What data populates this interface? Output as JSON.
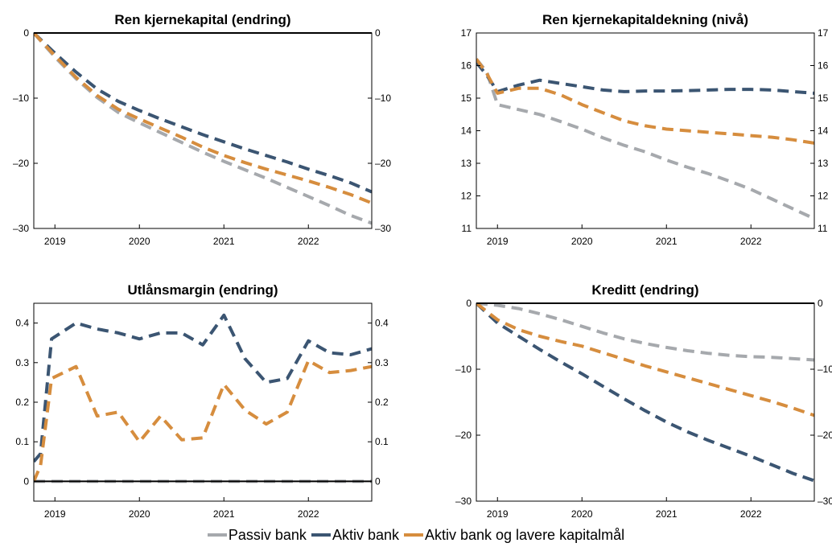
{
  "colors": {
    "Passiv bank": "#a6a9ad",
    "Aktiv bank": "#3b5572",
    "Aktiv bank og lavere kapitalmål": "#d68d3e"
  },
  "legend": {
    "items": [
      {
        "label": "Passiv bank",
        "color": "#a6a9ad"
      },
      {
        "label": "Aktiv bank",
        "color": "#3b5572"
      },
      {
        "label": "Aktiv bank og lavere kapitalmål",
        "color": "#d68d3e"
      }
    ]
  },
  "chart_data": [
    {
      "type": "line",
      "title": "Ren kjernekapital (endring)",
      "xlabel": "",
      "ylabel": "",
      "xlim": [
        2018.75,
        2022.75
      ],
      "ylim": [
        -30,
        0
      ],
      "yticks": [
        0,
        -10,
        -20,
        -30
      ],
      "yticklabels": [
        "0",
        "–10",
        "–20",
        "–30"
      ],
      "xticks": [
        2019,
        2020,
        2021,
        2022
      ],
      "xticklabels": [
        "2019",
        "2020",
        "2021",
        "2022"
      ],
      "zero_line": 0,
      "series": [
        {
          "name": "Passiv bank",
          "x": [
            2018.75,
            2019,
            2019.25,
            2019.5,
            2019.75,
            2020,
            2020.25,
            2020.5,
            2020.75,
            2021,
            2021.25,
            2021.5,
            2021.75,
            2022,
            2022.25,
            2022.5,
            2022.75
          ],
          "values": [
            0,
            -3.7,
            -7,
            -9.9,
            -12.2,
            -13.8,
            -15.3,
            -16.8,
            -18.3,
            -19.7,
            -21,
            -22.3,
            -23.7,
            -25.1,
            -26.5,
            -28,
            -29.2
          ]
        },
        {
          "name": "Aktiv bank",
          "x": [
            2018.75,
            2019,
            2019.25,
            2019.5,
            2019.75,
            2020,
            2020.25,
            2020.5,
            2020.75,
            2021,
            2021.25,
            2021.5,
            2021.75,
            2022,
            2022.25,
            2022.5,
            2022.75
          ],
          "values": [
            0,
            -3.1,
            -6,
            -8.6,
            -10.5,
            -11.9,
            -13.2,
            -14.4,
            -15.6,
            -16.7,
            -17.8,
            -18.8,
            -19.8,
            -20.9,
            -21.9,
            -23,
            -24.4
          ]
        },
        {
          "name": "Aktiv bank og lavere kapitalmål",
          "x": [
            2018.75,
            2019,
            2019.25,
            2019.5,
            2019.75,
            2020,
            2020.25,
            2020.5,
            2020.75,
            2021,
            2021.25,
            2021.5,
            2021.75,
            2022,
            2022.25,
            2022.5,
            2022.75
          ],
          "values": [
            0,
            -3.5,
            -6.8,
            -9.6,
            -11.7,
            -13.2,
            -14.6,
            -16,
            -17.5,
            -18.8,
            -19.9,
            -20.9,
            -21.8,
            -22.7,
            -23.7,
            -24.8,
            -26.1
          ]
        }
      ]
    },
    {
      "type": "line",
      "title": "Ren kjernekapitaldekning (nivå)",
      "xlabel": "",
      "ylabel": "",
      "xlim": [
        2018.75,
        2022.75
      ],
      "ylim": [
        11,
        17
      ],
      "yticks": [
        11,
        12,
        13,
        14,
        15,
        16,
        17
      ],
      "yticklabels": [
        "11",
        "12",
        "13",
        "14",
        "15",
        "16",
        "17"
      ],
      "xticks": [
        2019,
        2020,
        2021,
        2022
      ],
      "xticklabels": [
        "2019",
        "2020",
        "2021",
        "2022"
      ],
      "zero_line": null,
      "series": [
        {
          "name": "Passiv bank",
          "x": [
            2018.75,
            2018.875,
            2019,
            2019.25,
            2019.5,
            2019.75,
            2020,
            2020.25,
            2020.5,
            2020.75,
            2021,
            2021.25,
            2021.5,
            2021.75,
            2022,
            2022.25,
            2022.5,
            2022.75
          ],
          "values": [
            16.2,
            15.8,
            14.8,
            14.65,
            14.5,
            14.28,
            14.05,
            13.78,
            13.55,
            13.35,
            13.1,
            12.88,
            12.68,
            12.45,
            12.2,
            11.9,
            11.6,
            11.3
          ]
        },
        {
          "name": "Aktiv bank",
          "x": [
            2018.75,
            2018.875,
            2019,
            2019.25,
            2019.5,
            2019.75,
            2020,
            2020.25,
            2020.5,
            2020.75,
            2021,
            2021.25,
            2021.5,
            2021.75,
            2022,
            2022.25,
            2022.5,
            2022.75
          ],
          "values": [
            16.1,
            15.7,
            15.2,
            15.4,
            15.55,
            15.45,
            15.35,
            15.25,
            15.2,
            15.22,
            15.22,
            15.23,
            15.25,
            15.27,
            15.27,
            15.25,
            15.2,
            15.15
          ]
        },
        {
          "name": "Aktiv bank og lavere kapitalmål",
          "x": [
            2018.75,
            2018.875,
            2019,
            2019.25,
            2019.5,
            2019.75,
            2020,
            2020.25,
            2020.5,
            2020.75,
            2021,
            2021.25,
            2021.5,
            2021.75,
            2022,
            2022.25,
            2022.5,
            2022.75
          ],
          "values": [
            16.2,
            15.75,
            15.15,
            15.3,
            15.3,
            15.1,
            14.8,
            14.55,
            14.3,
            14.15,
            14.05,
            14,
            13.95,
            13.9,
            13.85,
            13.8,
            13.72,
            13.62
          ]
        }
      ]
    },
    {
      "type": "line",
      "title": "Utlånsmargin (endring)",
      "xlabel": "",
      "ylabel": "",
      "xlim": [
        2018.75,
        2022.75
      ],
      "ylim": [
        -0.05,
        0.45
      ],
      "yticks": [
        0,
        0.1,
        0.2,
        0.3,
        0.4
      ],
      "yticklabels": [
        "0",
        "0.1",
        "0.2",
        "0.3",
        "0.4"
      ],
      "xticks": [
        2019,
        2020,
        2021,
        2022
      ],
      "xticklabels": [
        "2019",
        "2020",
        "2021",
        "2022"
      ],
      "zero_line": 0,
      "series": [
        {
          "name": "Passiv bank",
          "x": [
            2018.75,
            2022.75
          ],
          "values": [
            0,
            0
          ]
        },
        {
          "name": "Aktiv bank",
          "x": [
            2018.75,
            2018.83,
            2018.96,
            2019.25,
            2019.5,
            2019.75,
            2020,
            2020.25,
            2020.5,
            2020.75,
            2021,
            2021.25,
            2021.5,
            2021.75,
            2022,
            2022.25,
            2022.5,
            2022.75
          ],
          "values": [
            0.05,
            0.07,
            0.36,
            0.4,
            0.385,
            0.375,
            0.36,
            0.375,
            0.375,
            0.345,
            0.42,
            0.31,
            0.25,
            0.26,
            0.355,
            0.325,
            0.32,
            0.335
          ]
        },
        {
          "name": "Aktiv bank og lavere kapitalmål",
          "x": [
            2018.75,
            2018.83,
            2018.96,
            2019.25,
            2019.5,
            2019.75,
            2020,
            2020.25,
            2020.5,
            2020.75,
            2021,
            2021.25,
            2021.5,
            2021.75,
            2022,
            2022.25,
            2022.5,
            2022.75
          ],
          "values": [
            0,
            0.04,
            0.26,
            0.29,
            0.165,
            0.175,
            0.1,
            0.165,
            0.105,
            0.11,
            0.245,
            0.18,
            0.145,
            0.175,
            0.305,
            0.275,
            0.28,
            0.29
          ]
        }
      ]
    },
    {
      "type": "line",
      "title": "Kreditt (endring)",
      "xlabel": "",
      "ylabel": "",
      "xlim": [
        2018.75,
        2022.75
      ],
      "ylim": [
        -30,
        0
      ],
      "yticks": [
        0,
        -10,
        -20,
        -30
      ],
      "yticklabels": [
        "0",
        "–10",
        "–20",
        "–30"
      ],
      "xticks": [
        2019,
        2020,
        2021,
        2022
      ],
      "xticklabels": [
        "2019",
        "2020",
        "2021",
        "2022"
      ],
      "zero_line": 0,
      "series": [
        {
          "name": "Passiv bank",
          "x": [
            2018.75,
            2019,
            2019.25,
            2019.5,
            2019.75,
            2020,
            2020.25,
            2020.5,
            2020.75,
            2021,
            2021.25,
            2021.5,
            2021.75,
            2022,
            2022.25,
            2022.5,
            2022.75
          ],
          "values": [
            0,
            -0.3,
            -0.8,
            -1.6,
            -2.5,
            -3.5,
            -4.5,
            -5.4,
            -6.1,
            -6.7,
            -7.2,
            -7.6,
            -7.9,
            -8.1,
            -8.2,
            -8.4,
            -8.6
          ]
        },
        {
          "name": "Aktiv bank",
          "x": [
            2018.75,
            2019,
            2019.25,
            2019.5,
            2019.75,
            2020,
            2020.25,
            2020.5,
            2020.75,
            2021,
            2021.25,
            2021.5,
            2021.75,
            2022,
            2022.25,
            2022.5,
            2022.75
          ],
          "values": [
            0,
            -3,
            -5,
            -7,
            -8.9,
            -10.7,
            -12.6,
            -14.5,
            -16.3,
            -18,
            -19.5,
            -20.8,
            -22,
            -23.2,
            -24.5,
            -25.8,
            -26.9
          ]
        },
        {
          "name": "Aktiv bank og lavere kapitalmål",
          "x": [
            2018.75,
            2019,
            2019.25,
            2019.5,
            2019.75,
            2020,
            2020.25,
            2020.5,
            2020.75,
            2021,
            2021.25,
            2021.5,
            2021.75,
            2022,
            2022.25,
            2022.5,
            2022.75
          ],
          "values": [
            0,
            -2.5,
            -4,
            -5,
            -5.8,
            -6.5,
            -7.5,
            -8.5,
            -9.5,
            -10.4,
            -11.3,
            -12.2,
            -13.1,
            -14,
            -14.9,
            -15.9,
            -17
          ]
        }
      ]
    }
  ]
}
